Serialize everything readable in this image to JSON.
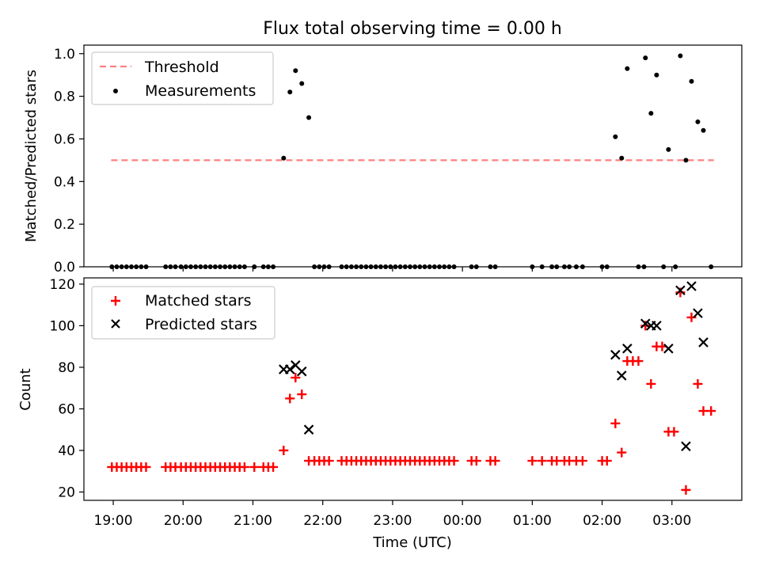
{
  "title": "Flux total observing time = 0.00 h",
  "colors": {
    "threshold": "#ff7f7f",
    "measurement": "#000000",
    "matched": "#ff0000",
    "predicted": "#000000"
  },
  "chart_data": [
    {
      "type": "scatter",
      "ylabel": "Matched/Predicted stars",
      "ylim": [
        0,
        1.04
      ],
      "xlim_hours": [
        18.58,
        28.0
      ],
      "y_ticks": [
        {
          "v": 0.0,
          "label": "0.0"
        },
        {
          "v": 0.2,
          "label": "0.2"
        },
        {
          "v": 0.4,
          "label": "0.4"
        },
        {
          "v": 0.6,
          "label": "0.6"
        },
        {
          "v": 0.8,
          "label": "0.8"
        },
        {
          "v": 1.0,
          "label": "1.0"
        }
      ],
      "legend": {
        "threshold_label": "Threshold",
        "measurements_label": "Measurements",
        "location": "upper-left"
      },
      "threshold": {
        "value": 0.5,
        "x_start": 18.97,
        "x_end": 27.6
      },
      "measurements": [
        {
          "x": 18.98,
          "y": 0.0
        },
        {
          "x": 19.05,
          "y": 0.0
        },
        {
          "x": 19.12,
          "y": 0.0
        },
        {
          "x": 19.19,
          "y": 0.0
        },
        {
          "x": 19.26,
          "y": 0.0
        },
        {
          "x": 19.33,
          "y": 0.0
        },
        {
          "x": 19.4,
          "y": 0.0
        },
        {
          "x": 19.47,
          "y": 0.0
        },
        {
          "x": 19.75,
          "y": 0.0
        },
        {
          "x": 19.82,
          "y": 0.0
        },
        {
          "x": 19.89,
          "y": 0.0
        },
        {
          "x": 19.97,
          "y": 0.0
        },
        {
          "x": 20.04,
          "y": 0.0
        },
        {
          "x": 20.11,
          "y": 0.0
        },
        {
          "x": 20.18,
          "y": 0.0
        },
        {
          "x": 20.25,
          "y": 0.0
        },
        {
          "x": 20.32,
          "y": 0.0
        },
        {
          "x": 20.39,
          "y": 0.0
        },
        {
          "x": 20.46,
          "y": 0.0
        },
        {
          "x": 20.53,
          "y": 0.0
        },
        {
          "x": 20.6,
          "y": 0.0
        },
        {
          "x": 20.67,
          "y": 0.0
        },
        {
          "x": 20.74,
          "y": 0.0
        },
        {
          "x": 20.81,
          "y": 0.0
        },
        {
          "x": 20.88,
          "y": 0.0
        },
        {
          "x": 21.02,
          "y": 0.0
        },
        {
          "x": 21.15,
          "y": 0.0
        },
        {
          "x": 21.22,
          "y": 0.0
        },
        {
          "x": 21.29,
          "y": 0.0
        },
        {
          "x": 21.44,
          "y": 0.51
        },
        {
          "x": 21.53,
          "y": 0.82
        },
        {
          "x": 21.61,
          "y": 0.92
        },
        {
          "x": 21.7,
          "y": 0.86
        },
        {
          "x": 21.8,
          "y": 0.7
        },
        {
          "x": 21.88,
          "y": 0.0
        },
        {
          "x": 21.95,
          "y": 0.0
        },
        {
          "x": 22.02,
          "y": 0.0
        },
        {
          "x": 22.09,
          "y": 0.0
        },
        {
          "x": 22.27,
          "y": 0.0
        },
        {
          "x": 22.34,
          "y": 0.0
        },
        {
          "x": 22.41,
          "y": 0.0
        },
        {
          "x": 22.48,
          "y": 0.0
        },
        {
          "x": 22.55,
          "y": 0.0
        },
        {
          "x": 22.62,
          "y": 0.0
        },
        {
          "x": 22.69,
          "y": 0.0
        },
        {
          "x": 22.76,
          "y": 0.0
        },
        {
          "x": 22.83,
          "y": 0.0
        },
        {
          "x": 22.9,
          "y": 0.0
        },
        {
          "x": 22.97,
          "y": 0.0
        },
        {
          "x": 23.04,
          "y": 0.0
        },
        {
          "x": 23.11,
          "y": 0.0
        },
        {
          "x": 23.18,
          "y": 0.0
        },
        {
          "x": 23.25,
          "y": 0.0
        },
        {
          "x": 23.32,
          "y": 0.0
        },
        {
          "x": 23.39,
          "y": 0.0
        },
        {
          "x": 23.46,
          "y": 0.0
        },
        {
          "x": 23.53,
          "y": 0.0
        },
        {
          "x": 23.6,
          "y": 0.0
        },
        {
          "x": 23.67,
          "y": 0.0
        },
        {
          "x": 23.74,
          "y": 0.0
        },
        {
          "x": 23.81,
          "y": 0.0
        },
        {
          "x": 23.88,
          "y": 0.0
        },
        {
          "x": 24.13,
          "y": 0.0
        },
        {
          "x": 24.2,
          "y": 0.0
        },
        {
          "x": 24.4,
          "y": 0.0
        },
        {
          "x": 24.47,
          "y": 0.0
        },
        {
          "x": 25.0,
          "y": 0.0
        },
        {
          "x": 25.14,
          "y": 0.0
        },
        {
          "x": 25.28,
          "y": 0.0
        },
        {
          "x": 25.35,
          "y": 0.0
        },
        {
          "x": 25.46,
          "y": 0.0
        },
        {
          "x": 25.53,
          "y": 0.0
        },
        {
          "x": 25.63,
          "y": 0.0
        },
        {
          "x": 25.72,
          "y": 0.0
        },
        {
          "x": 26.0,
          "y": 0.0
        },
        {
          "x": 26.07,
          "y": 0.0
        },
        {
          "x": 26.19,
          "y": 0.61
        },
        {
          "x": 26.28,
          "y": 0.51
        },
        {
          "x": 26.36,
          "y": 0.93
        },
        {
          "x": 26.52,
          "y": 0.0
        },
        {
          "x": 26.6,
          "y": 0.0
        },
        {
          "x": 26.62,
          "y": 0.98
        },
        {
          "x": 26.7,
          "y": 0.72
        },
        {
          "x": 26.78,
          "y": 0.9
        },
        {
          "x": 26.88,
          "y": 0.0
        },
        {
          "x": 26.95,
          "y": 0.55
        },
        {
          "x": 27.05,
          "y": 0.0
        },
        {
          "x": 27.12,
          "y": 0.99
        },
        {
          "x": 27.2,
          "y": 0.5
        },
        {
          "x": 27.28,
          "y": 0.87
        },
        {
          "x": 27.37,
          "y": 0.68
        },
        {
          "x": 27.45,
          "y": 0.64
        },
        {
          "x": 27.56,
          "y": 0.0
        }
      ]
    },
    {
      "type": "scatter",
      "ylabel": "Count",
      "xlabel": "Time (UTC)",
      "ylim": [
        16,
        123
      ],
      "xlim_hours": [
        18.58,
        28.0
      ],
      "y_ticks": [
        {
          "v": 20,
          "label": "20"
        },
        {
          "v": 40,
          "label": "40"
        },
        {
          "v": 60,
          "label": "60"
        },
        {
          "v": 80,
          "label": "80"
        },
        {
          "v": 100,
          "label": "100"
        },
        {
          "v": 120,
          "label": "120"
        }
      ],
      "x_ticks": [
        {
          "h": 19,
          "label": "19:00"
        },
        {
          "h": 20,
          "label": "20:00"
        },
        {
          "h": 21,
          "label": "21:00"
        },
        {
          "h": 22,
          "label": "22:00"
        },
        {
          "h": 23,
          "label": "23:00"
        },
        {
          "h": 24,
          "label": "00:00"
        },
        {
          "h": 25,
          "label": "01:00"
        },
        {
          "h": 26,
          "label": "02:00"
        },
        {
          "h": 27,
          "label": "03:00"
        }
      ],
      "legend": {
        "matched_label": "Matched stars",
        "predicted_label": "Predicted stars",
        "location": "upper-left"
      },
      "matched": [
        {
          "x": 18.98,
          "y": 32
        },
        {
          "x": 19.05,
          "y": 32
        },
        {
          "x": 19.12,
          "y": 32
        },
        {
          "x": 19.19,
          "y": 32
        },
        {
          "x": 19.26,
          "y": 32
        },
        {
          "x": 19.33,
          "y": 32
        },
        {
          "x": 19.4,
          "y": 32
        },
        {
          "x": 19.47,
          "y": 32
        },
        {
          "x": 19.75,
          "y": 32
        },
        {
          "x": 19.82,
          "y": 32
        },
        {
          "x": 19.89,
          "y": 32
        },
        {
          "x": 19.97,
          "y": 32
        },
        {
          "x": 20.04,
          "y": 32
        },
        {
          "x": 20.11,
          "y": 32
        },
        {
          "x": 20.18,
          "y": 32
        },
        {
          "x": 20.25,
          "y": 32
        },
        {
          "x": 20.32,
          "y": 32
        },
        {
          "x": 20.39,
          "y": 32
        },
        {
          "x": 20.46,
          "y": 32
        },
        {
          "x": 20.53,
          "y": 32
        },
        {
          "x": 20.6,
          "y": 32
        },
        {
          "x": 20.67,
          "y": 32
        },
        {
          "x": 20.74,
          "y": 32
        },
        {
          "x": 20.81,
          "y": 32
        },
        {
          "x": 20.88,
          "y": 32
        },
        {
          "x": 21.02,
          "y": 32
        },
        {
          "x": 21.15,
          "y": 32
        },
        {
          "x": 21.22,
          "y": 32
        },
        {
          "x": 21.29,
          "y": 32
        },
        {
          "x": 21.44,
          "y": 40
        },
        {
          "x": 21.53,
          "y": 65
        },
        {
          "x": 21.61,
          "y": 75
        },
        {
          "x": 21.7,
          "y": 67
        },
        {
          "x": 21.8,
          "y": 35
        },
        {
          "x": 21.88,
          "y": 35
        },
        {
          "x": 21.95,
          "y": 35
        },
        {
          "x": 22.02,
          "y": 35
        },
        {
          "x": 22.09,
          "y": 35
        },
        {
          "x": 22.27,
          "y": 35
        },
        {
          "x": 22.34,
          "y": 35
        },
        {
          "x": 22.41,
          "y": 35
        },
        {
          "x": 22.48,
          "y": 35
        },
        {
          "x": 22.55,
          "y": 35
        },
        {
          "x": 22.62,
          "y": 35
        },
        {
          "x": 22.69,
          "y": 35
        },
        {
          "x": 22.76,
          "y": 35
        },
        {
          "x": 22.83,
          "y": 35
        },
        {
          "x": 22.9,
          "y": 35
        },
        {
          "x": 22.97,
          "y": 35
        },
        {
          "x": 23.04,
          "y": 35
        },
        {
          "x": 23.11,
          "y": 35
        },
        {
          "x": 23.18,
          "y": 35
        },
        {
          "x": 23.25,
          "y": 35
        },
        {
          "x": 23.32,
          "y": 35
        },
        {
          "x": 23.39,
          "y": 35
        },
        {
          "x": 23.46,
          "y": 35
        },
        {
          "x": 23.53,
          "y": 35
        },
        {
          "x": 23.6,
          "y": 35
        },
        {
          "x": 23.67,
          "y": 35
        },
        {
          "x": 23.74,
          "y": 35
        },
        {
          "x": 23.81,
          "y": 35
        },
        {
          "x": 23.88,
          "y": 35
        },
        {
          "x": 24.13,
          "y": 35
        },
        {
          "x": 24.2,
          "y": 35
        },
        {
          "x": 24.4,
          "y": 35
        },
        {
          "x": 24.47,
          "y": 35
        },
        {
          "x": 25.0,
          "y": 35
        },
        {
          "x": 25.14,
          "y": 35
        },
        {
          "x": 25.28,
          "y": 35
        },
        {
          "x": 25.35,
          "y": 35
        },
        {
          "x": 25.46,
          "y": 35
        },
        {
          "x": 25.53,
          "y": 35
        },
        {
          "x": 25.63,
          "y": 35
        },
        {
          "x": 25.72,
          "y": 35
        },
        {
          "x": 26.0,
          "y": 35
        },
        {
          "x": 26.07,
          "y": 35
        },
        {
          "x": 26.19,
          "y": 53
        },
        {
          "x": 26.28,
          "y": 39
        },
        {
          "x": 26.36,
          "y": 83
        },
        {
          "x": 26.44,
          "y": 83
        },
        {
          "x": 26.52,
          "y": 83
        },
        {
          "x": 26.62,
          "y": 100
        },
        {
          "x": 26.7,
          "y": 72
        },
        {
          "x": 26.78,
          "y": 90
        },
        {
          "x": 26.86,
          "y": 90
        },
        {
          "x": 26.95,
          "y": 49
        },
        {
          "x": 27.03,
          "y": 49
        },
        {
          "x": 27.12,
          "y": 116
        },
        {
          "x": 27.2,
          "y": 21
        },
        {
          "x": 27.28,
          "y": 104
        },
        {
          "x": 27.37,
          "y": 72
        },
        {
          "x": 27.45,
          "y": 59
        },
        {
          "x": 27.56,
          "y": 59
        }
      ],
      "predicted": [
        {
          "x": 21.44,
          "y": 79
        },
        {
          "x": 21.53,
          "y": 79
        },
        {
          "x": 21.61,
          "y": 81
        },
        {
          "x": 21.7,
          "y": 78
        },
        {
          "x": 21.8,
          "y": 50
        },
        {
          "x": 26.19,
          "y": 86
        },
        {
          "x": 26.28,
          "y": 76
        },
        {
          "x": 26.36,
          "y": 89
        },
        {
          "x": 26.62,
          "y": 101
        },
        {
          "x": 26.7,
          "y": 100
        },
        {
          "x": 26.78,
          "y": 100
        },
        {
          "x": 26.95,
          "y": 89
        },
        {
          "x": 27.12,
          "y": 117
        },
        {
          "x": 27.2,
          "y": 42
        },
        {
          "x": 27.28,
          "y": 119
        },
        {
          "x": 27.37,
          "y": 106
        },
        {
          "x": 27.45,
          "y": 92
        }
      ]
    }
  ]
}
